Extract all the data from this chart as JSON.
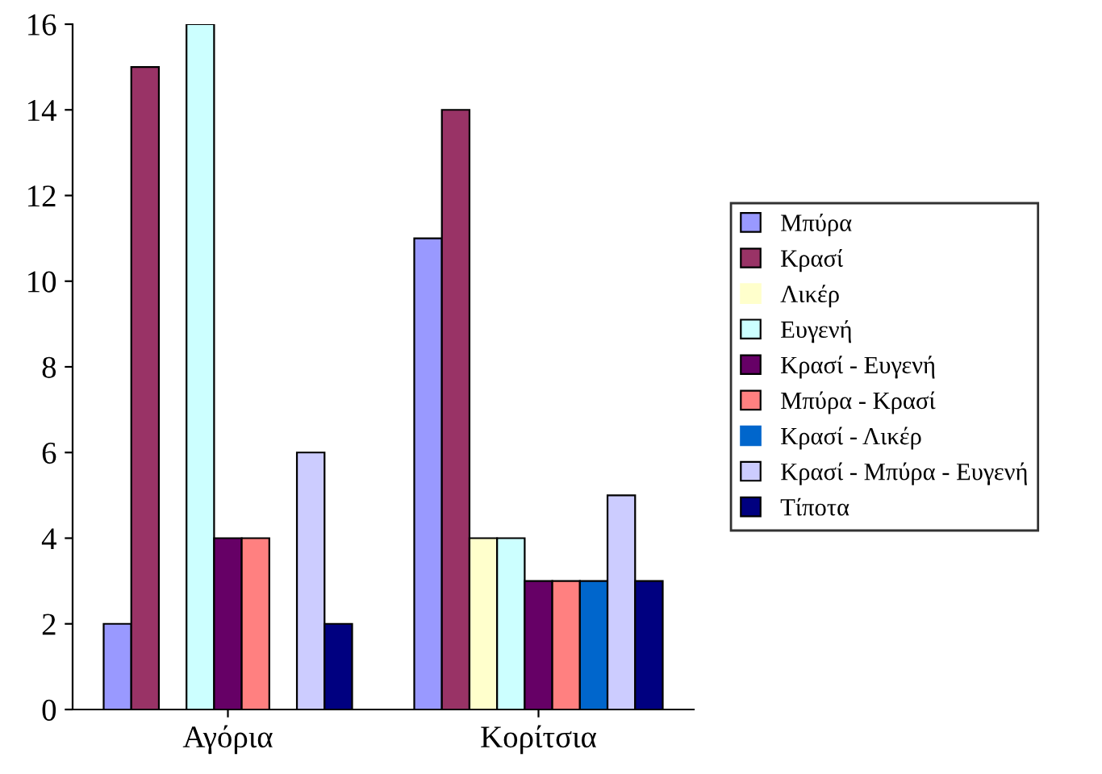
{
  "chart_data": {
    "type": "bar",
    "categories": [
      "Αγόρια",
      "Κορίτσια"
    ],
    "series": [
      {
        "name": "Μπύρα",
        "color": "#9999ff",
        "values": [
          2,
          11
        ]
      },
      {
        "name": "Κρασί",
        "color": "#993366",
        "values": [
          15,
          14
        ]
      },
      {
        "name": "Λικέρ",
        "color": "#ffffcc",
        "values": [
          0,
          4
        ]
      },
      {
        "name": "Ευγενή",
        "color": "#ccffff",
        "values": [
          16,
          4
        ]
      },
      {
        "name": "Κρασί - Ευγενή",
        "color": "#660066",
        "values": [
          4,
          3
        ]
      },
      {
        "name": "Μπύρα - Κρασί",
        "color": "#ff8080",
        "values": [
          4,
          3
        ]
      },
      {
        "name": "Κρασί - Λικέρ",
        "color": "#0066cc",
        "values": [
          0,
          3
        ]
      },
      {
        "name": "Κρασί - Μπύρα - Ευγενή",
        "color": "#ccccff",
        "values": [
          6,
          5
        ]
      },
      {
        "name": "Τίποτα",
        "color": "#000080",
        "values": [
          2,
          3
        ]
      }
    ],
    "ylim": [
      0,
      16
    ],
    "yticks": [
      0,
      2,
      4,
      6,
      8,
      10,
      12,
      14,
      16
    ],
    "grid": false,
    "legend": "right"
  }
}
